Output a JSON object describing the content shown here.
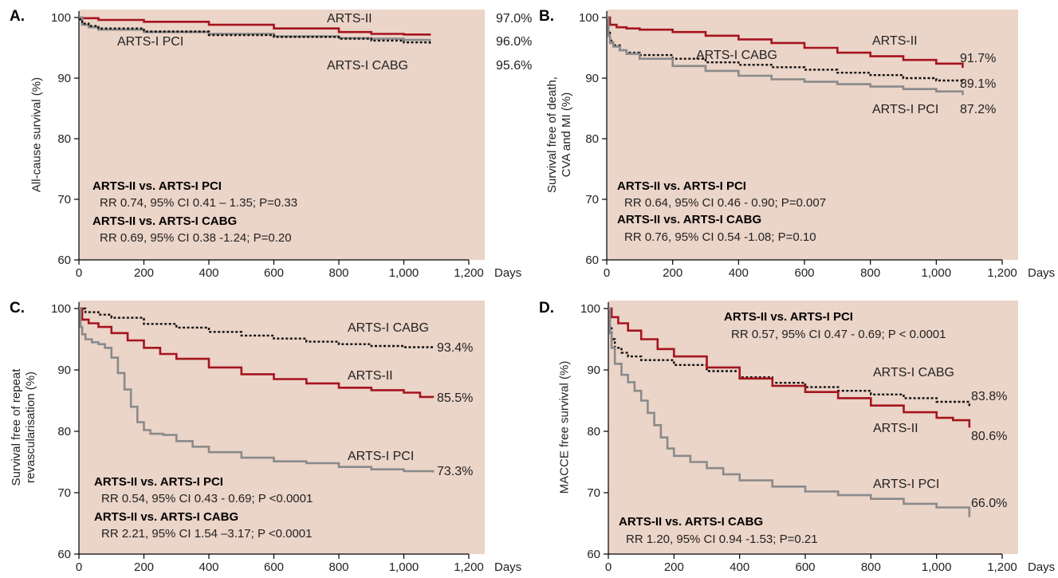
{
  "colors": {
    "background": "#ebd4c8",
    "arts2": "#a5141d",
    "arts1_pci": "#8a8a8a",
    "arts1_cabg": "#111111"
  },
  "x_unit": "Days",
  "chart_data": [
    {
      "type": "line",
      "panel": "A.",
      "ylabel": "All-cause survival (%)",
      "xlabel": "Days",
      "xlim": [
        0,
        1200
      ],
      "ylim": [
        60,
        100
      ],
      "xticks": [
        0,
        200,
        400,
        600,
        800,
        1000,
        1200
      ],
      "xtick_labels": [
        "0",
        "200",
        "400",
        "600",
        "800",
        "1,000",
        "1,200"
      ],
      "yticks": [
        60,
        70,
        80,
        90,
        100
      ],
      "series": [
        {
          "name": "ARTS-II",
          "style": "arts2",
          "end_label": "97.0%",
          "x": [
            0,
            10,
            60,
            200,
            400,
            600,
            800,
            900,
            1000,
            1080
          ],
          "y": [
            100,
            99.9,
            99.6,
            99.3,
            98.8,
            98.2,
            97.6,
            97.3,
            97.2,
            97.0
          ]
        },
        {
          "name": "ARTS-I PCI",
          "style": "arts1_pci",
          "end_label": "96.0%",
          "x": [
            0,
            10,
            30,
            60,
            200,
            400,
            600,
            800,
            900,
            1000,
            1080
          ],
          "y": [
            100,
            98.8,
            98.4,
            98.0,
            97.6,
            97.3,
            96.9,
            96.6,
            96.5,
            96.3,
            96.0
          ]
        },
        {
          "name": "ARTS-I CABG",
          "style": "arts1_cabg",
          "end_label": "95.6%",
          "x": [
            0,
            10,
            30,
            60,
            200,
            400,
            600,
            800,
            900,
            1000,
            1080
          ],
          "y": [
            99.7,
            99.0,
            98.6,
            98.2,
            97.7,
            97.1,
            96.8,
            96.5,
            96.2,
            95.9,
            95.6
          ]
        }
      ],
      "stats": [
        {
          "head": "ARTS-II vs. ARTS-I PCI",
          "line": "RR 0.74, 95% CI 0.41 – 1.35;  P=0.33"
        },
        {
          "head": "ARTS-II vs. ARTS-I CABG",
          "line": "RR 0.69, 95% CI 0.38 -1.24;  P=0.20"
        }
      ]
    },
    {
      "type": "line",
      "panel": "B.",
      "ylabel": "Survival free of death,\nCVA and MI (%)",
      "xlabel": "Days",
      "xlim": [
        0,
        1200
      ],
      "ylim": [
        60,
        100
      ],
      "xticks": [
        0,
        200,
        400,
        600,
        800,
        1000,
        1200
      ],
      "xtick_labels": [
        "0",
        "200",
        "400",
        "600",
        "800",
        "1,000",
        "1,200"
      ],
      "yticks": [
        60,
        70,
        80,
        90,
        100
      ],
      "series": [
        {
          "name": "ARTS-II",
          "style": "arts2",
          "end_label": "91.7%",
          "x": [
            0,
            10,
            30,
            60,
            100,
            200,
            300,
            400,
            500,
            600,
            700,
            800,
            900,
            1000,
            1080
          ],
          "y": [
            100,
            98.8,
            98.4,
            98.2,
            98.0,
            97.6,
            97.0,
            96.4,
            95.8,
            95.0,
            94.2,
            93.6,
            93.0,
            92.4,
            91.7
          ]
        },
        {
          "name": "ARTS-I CABG",
          "style": "arts1_cabg",
          "end_label": "89.1%",
          "x": [
            0,
            5,
            10,
            20,
            40,
            60,
            100,
            200,
            300,
            400,
            500,
            600,
            700,
            800,
            900,
            1000,
            1080
          ],
          "y": [
            100,
            97.5,
            96.2,
            95.4,
            94.6,
            94.2,
            93.8,
            93.2,
            92.6,
            92.2,
            91.8,
            91.4,
            90.9,
            90.5,
            90.0,
            89.6,
            89.1
          ]
        },
        {
          "name": "ARTS-I PCI",
          "style": "arts1_pci",
          "end_label": "87.2%",
          "x": [
            0,
            5,
            10,
            20,
            40,
            60,
            100,
            200,
            300,
            400,
            500,
            600,
            700,
            800,
            900,
            1000,
            1080
          ],
          "y": [
            100,
            97.0,
            95.8,
            95.2,
            94.6,
            94.0,
            93.2,
            92.0,
            91.2,
            90.4,
            89.8,
            89.4,
            89.0,
            88.6,
            88.2,
            87.8,
            87.2
          ]
        }
      ],
      "stats": [
        {
          "head": "ARTS-II vs. ARTS-I PCI",
          "line": "RR 0.64, 95% CI 0.46 - 0.90;  P=0.007"
        },
        {
          "head": "ARTS-II vs. ARTS-I CABG",
          "line": "RR 0.76, 95% CI 0.54 -1.08;  P=0.10"
        }
      ]
    },
    {
      "type": "line",
      "panel": "C.",
      "ylabel": "Survival free of repeat\nrevascularisation (%)",
      "xlabel": "Days",
      "xlim": [
        0,
        1200
      ],
      "ylim": [
        60,
        100
      ],
      "xticks": [
        0,
        200,
        400,
        600,
        800,
        1000,
        1200
      ],
      "xtick_labels": [
        "0",
        "200",
        "400",
        "600",
        "800",
        "1,000",
        "1,200"
      ],
      "yticks": [
        60,
        70,
        80,
        90,
        100
      ],
      "series": [
        {
          "name": "ARTS-I CABG",
          "style": "arts1_cabg",
          "end_label": "93.4%",
          "x": [
            0,
            20,
            60,
            100,
            200,
            300,
            400,
            500,
            600,
            700,
            800,
            900,
            1000,
            1090
          ],
          "y": [
            100,
            99.4,
            99.0,
            98.5,
            97.5,
            96.9,
            96.2,
            95.6,
            95.1,
            94.6,
            94.2,
            93.9,
            93.7,
            93.4
          ]
        },
        {
          "name": "ARTS-II",
          "style": "arts2",
          "end_label": "85.5%",
          "x": [
            0,
            10,
            30,
            60,
            100,
            150,
            200,
            250,
            300,
            400,
            500,
            600,
            700,
            800,
            900,
            1000,
            1050,
            1090
          ],
          "y": [
            100,
            98.2,
            97.6,
            97.0,
            96.0,
            94.8,
            93.6,
            92.6,
            91.8,
            90.4,
            89.3,
            88.5,
            87.8,
            87.1,
            86.7,
            86.3,
            85.6,
            85.5
          ]
        },
        {
          "name": "ARTS-I PCI",
          "style": "arts1_pci",
          "end_label": "73.3%",
          "x": [
            0,
            5,
            10,
            20,
            40,
            60,
            80,
            100,
            120,
            140,
            160,
            180,
            200,
            220,
            260,
            300,
            350,
            400,
            500,
            600,
            700,
            800,
            900,
            1000,
            1090
          ],
          "y": [
            100,
            97.0,
            95.8,
            95.0,
            94.5,
            94.2,
            93.6,
            92.0,
            89.5,
            86.8,
            84.0,
            81.5,
            80.2,
            79.6,
            79.4,
            78.4,
            77.5,
            76.6,
            75.7,
            75.1,
            74.8,
            74.2,
            73.8,
            73.5,
            73.3
          ]
        }
      ],
      "stats": [
        {
          "head": "ARTS-II vs. ARTS-I PCI",
          "line": "RR 0.54, 95% CI 0.43 - 0.69;  P <0.0001"
        },
        {
          "head": "ARTS-II vs. ARTS-I CABG",
          "line": "RR 2.21, 95% CI 1.54 –3.17;  P <0.0001"
        }
      ]
    },
    {
      "type": "line",
      "panel": "D.",
      "ylabel": "MACCE free survival (%)",
      "xlabel": "Days",
      "xlim": [
        0,
        1200
      ],
      "ylim": [
        60,
        100
      ],
      "xticks": [
        0,
        200,
        400,
        600,
        800,
        1000,
        1200
      ],
      "xtick_labels": [
        "0",
        "200",
        "400",
        "600",
        "800",
        "1,000",
        "1,200"
      ],
      "yticks": [
        60,
        70,
        80,
        90,
        100
      ],
      "series": [
        {
          "name": "ARTS-I CABG",
          "style": "arts1_cabg",
          "end_label": "83.8%",
          "x": [
            0,
            5,
            10,
            20,
            40,
            60,
            100,
            200,
            300,
            400,
            500,
            600,
            700,
            800,
            900,
            1000,
            1100
          ],
          "y": [
            100,
            97.0,
            95.0,
            93.6,
            92.8,
            92.2,
            91.6,
            90.8,
            89.8,
            88.8,
            87.9,
            87.2,
            86.6,
            86.0,
            85.4,
            84.8,
            83.8
          ]
        },
        {
          "name": "ARTS-II",
          "style": "arts2",
          "end_label": "80.6%",
          "x": [
            0,
            10,
            30,
            60,
            100,
            150,
            200,
            300,
            400,
            500,
            600,
            700,
            800,
            900,
            1000,
            1050,
            1100
          ],
          "y": [
            100,
            98.6,
            97.6,
            96.4,
            95.0,
            93.4,
            92.2,
            90.4,
            88.6,
            87.4,
            86.4,
            85.4,
            84.2,
            83.1,
            82.2,
            81.8,
            80.6
          ]
        },
        {
          "name": "ARTS-I PCI",
          "style": "arts1_pci",
          "end_label": "66.0%",
          "x": [
            0,
            5,
            10,
            20,
            40,
            60,
            80,
            100,
            120,
            140,
            160,
            180,
            200,
            250,
            300,
            350,
            400,
            500,
            600,
            700,
            800,
            900,
            1000,
            1100
          ],
          "y": [
            100,
            96.0,
            93.6,
            91.0,
            89.2,
            88.0,
            86.6,
            85.0,
            83.0,
            81.0,
            79.0,
            77.2,
            76.0,
            75.0,
            74.0,
            73.0,
            72.0,
            71.0,
            70.2,
            69.6,
            69.0,
            68.2,
            67.6,
            66.0
          ]
        }
      ],
      "stats": [
        {
          "head": "ARTS-II vs. ARTS-I PCI",
          "line": "RR 0.57, 95% CI 0.47 - 0.69;  P < 0.0001"
        },
        {
          "head": "ARTS-II vs. ARTS-I CABG",
          "line": "RR 1.20, 95% CI 0.94 -1.53;  P=0.21"
        }
      ]
    }
  ]
}
